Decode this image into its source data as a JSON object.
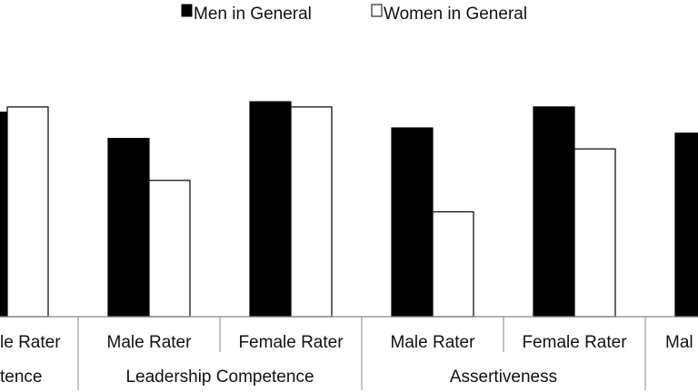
{
  "chart_data": {
    "type": "bar",
    "legend": {
      "placement": "top-center",
      "items": [
        {
          "label": "Men in General",
          "color": "#000000"
        },
        {
          "label": "Women in General",
          "color": "#ffffff"
        }
      ]
    },
    "series": [
      {
        "name": "Men in General",
        "values": [
          3.9,
          3.4,
          4.1,
          3.6,
          4.0,
          3.5
        ]
      },
      {
        "name": "Women in General",
        "values": [
          4.0,
          2.6,
          4.0,
          2.0,
          3.2,
          null
        ]
      }
    ],
    "categories": [
      {
        "rater": "le Rater",
        "group": "tence"
      },
      {
        "rater": "Male Rater",
        "group": "Leadership Competence"
      },
      {
        "rater": "Female Rater",
        "group": "Leadership Competence"
      },
      {
        "rater": "Male Rater",
        "group": "Assertiveness"
      },
      {
        "rater": "Female Rater",
        "group": "Assertiveness"
      },
      {
        "rater": "Mal",
        "group": ""
      }
    ],
    "groups": [
      "tence",
      "Leadership Competence",
      "Assertiveness"
    ],
    "ylim": [
      0,
      4.5
    ],
    "grid": false,
    "xlabel": "",
    "ylabel": "",
    "title": ""
  }
}
